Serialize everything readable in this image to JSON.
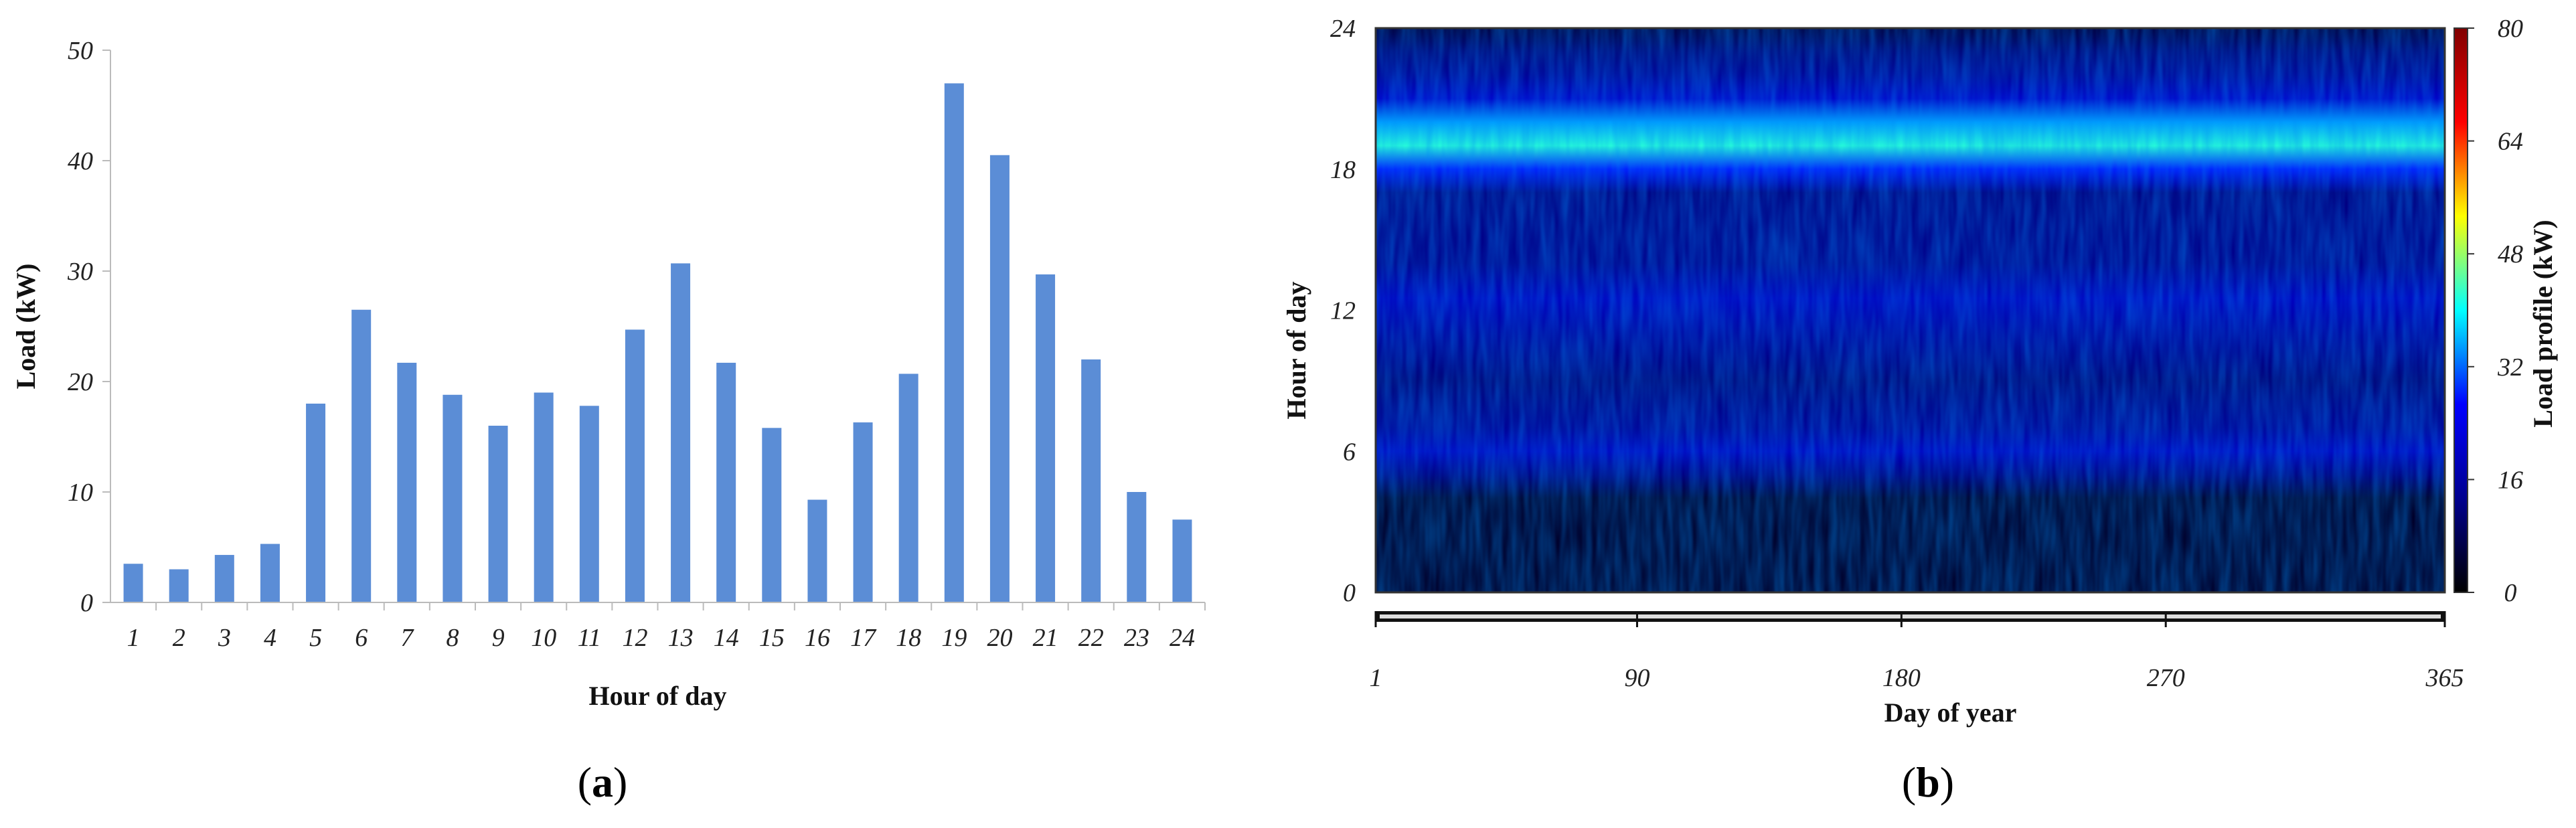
{
  "chart_data": [
    {
      "panel": "a",
      "type": "bar",
      "categories": [
        "1",
        "2",
        "3",
        "4",
        "5",
        "6",
        "7",
        "8",
        "9",
        "10",
        "11",
        "12",
        "13",
        "14",
        "15",
        "16",
        "17",
        "18",
        "19",
        "20",
        "21",
        "22",
        "23",
        "24"
      ],
      "values": [
        3.5,
        3.0,
        4.3,
        5.3,
        18.0,
        26.5,
        21.7,
        18.8,
        16.0,
        19.0,
        17.8,
        24.7,
        30.7,
        21.7,
        15.8,
        9.3,
        16.3,
        20.7,
        47.0,
        40.5,
        29.7,
        22.0,
        10.0,
        7.5
      ],
      "ylim": [
        0,
        50
      ],
      "yticks": [
        "0",
        "10",
        "20",
        "30",
        "40",
        "50"
      ],
      "xlabel": "Hour of day",
      "ylabel": "Load (kW)",
      "color": "#5b8dd6",
      "caption": "(a)",
      "caption_letter": "a",
      "grid": false,
      "legend": "none"
    },
    {
      "panel": "b",
      "type": "heatmap",
      "xlabel": "Day of year",
      "ylabel": "Hour of day",
      "colorbar_label": "Load profile (kW)",
      "xlim": [
        1,
        365
      ],
      "ylim": [
        0,
        24
      ],
      "xticks": [
        "1",
        "90",
        "180",
        "270",
        "365"
      ],
      "xtick_values": [
        1,
        90,
        180,
        270,
        365
      ],
      "yticks": [
        "0",
        "6",
        "12",
        "18",
        "24"
      ],
      "ytick_values": [
        0,
        6,
        12,
        18,
        24
      ],
      "colorbar_ticks": [
        "0",
        "16",
        "32",
        "48",
        "64",
        "80"
      ],
      "colorbar_range": [
        0,
        80
      ],
      "colormap": [
        "#000000",
        "#00008f",
        "#0000ff",
        "#00ffff",
        "#ffff00",
        "#ff0000",
        "#800000"
      ],
      "hourly_level_kW": {
        "hours": [
          0,
          4,
          5,
          6,
          7,
          9,
          11,
          12.5,
          14,
          17,
          18,
          19,
          20,
          21,
          22,
          23,
          24
        ],
        "levels": [
          4,
          4,
          12,
          19,
          14,
          11,
          15,
          19,
          13,
          12,
          28,
          42,
          35,
          20,
          14,
          11,
          6
        ]
      },
      "caption": "(b)",
      "caption_letter": "b",
      "grid": false,
      "legend": "colorbar-right"
    }
  ]
}
